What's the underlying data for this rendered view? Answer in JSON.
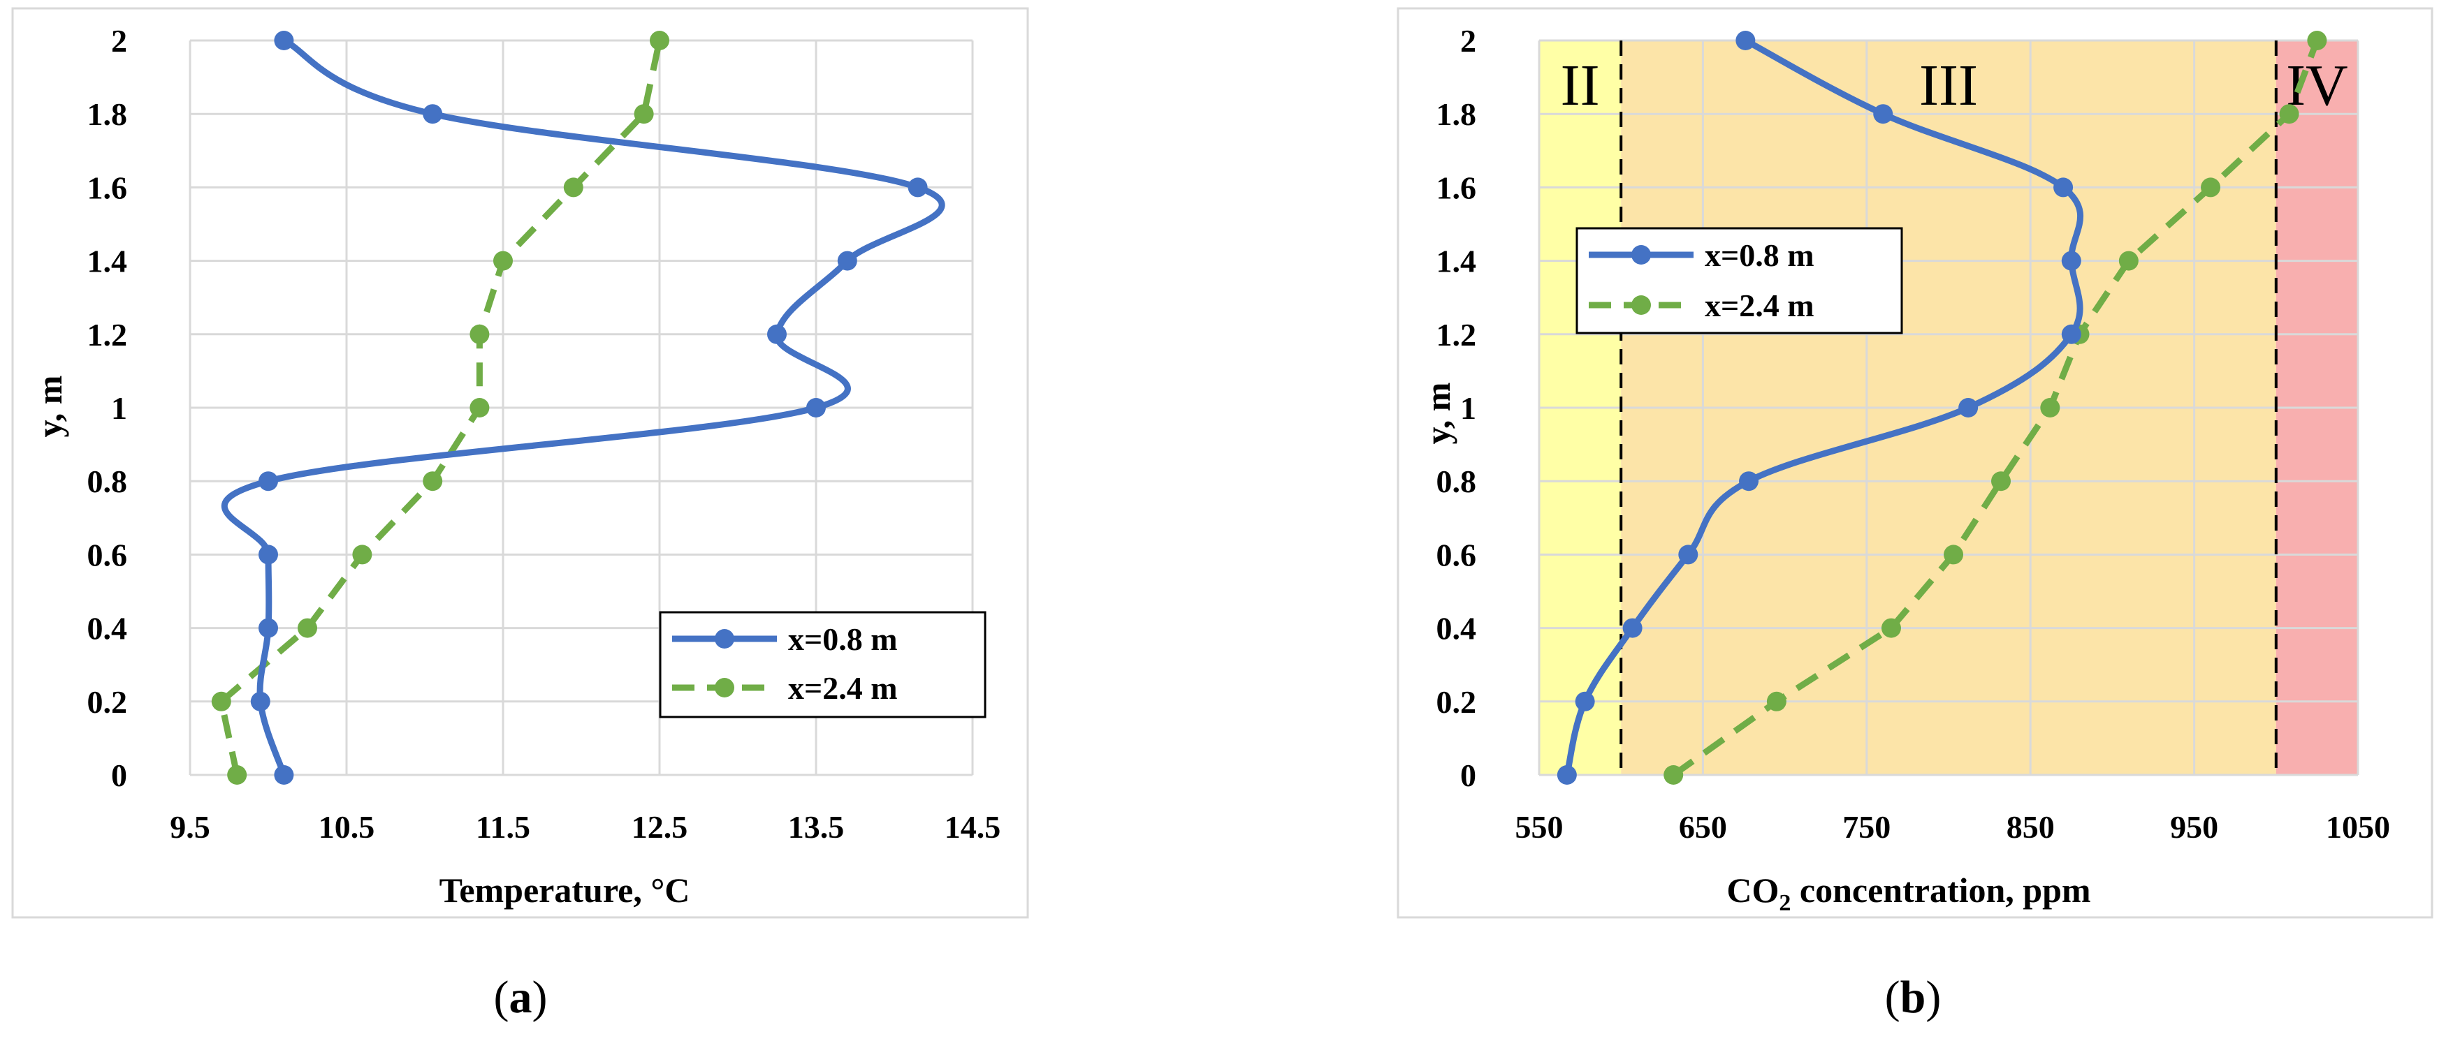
{
  "colors": {
    "series_a": "#4472C4",
    "series_b": "#70AD47",
    "grid": "#D9D9D9",
    "frame": "#D9D9D9",
    "zone_II": "#FFFFA6",
    "zone_III": "#FCE4A8",
    "zone_IV": "#F8AFAF",
    "zone_boundary": "#000000"
  },
  "panels": [
    {
      "label_before": "(",
      "label_letter": "a",
      "label_after": ")"
    },
    {
      "label_before": "(",
      "label_letter": "b",
      "label_after": ")"
    }
  ],
  "chart_data": [
    {
      "type": "line",
      "title": "",
      "xlabel": "Temperature, °C",
      "ylabel": "y, m",
      "xlim": [
        9.5,
        14.5
      ],
      "ylim": [
        0,
        2
      ],
      "xticks": [
        "9.5",
        "10.5",
        "11.5",
        "12.5",
        "13.5",
        "14.5"
      ],
      "yticks": [
        "0",
        "0.2",
        "0.4",
        "0.6",
        "0.8",
        "1",
        "1.2",
        "1.4",
        "1.6",
        "1.8",
        "2"
      ],
      "grid": true,
      "legend_position": "bottom-right",
      "series": [
        {
          "name": "x=0.8 m",
          "style": "solid, smoothed, circle markers",
          "points": [
            [
              10.1,
              0
            ],
            [
              9.95,
              0.2
            ],
            [
              10.0,
              0.4
            ],
            [
              10.0,
              0.6
            ],
            [
              10.0,
              0.8
            ],
            [
              13.5,
              1.0
            ],
            [
              13.25,
              1.2
            ],
            [
              13.7,
              1.4
            ],
            [
              14.15,
              1.6
            ],
            [
              11.05,
              1.8
            ],
            [
              10.1,
              2.0
            ]
          ]
        },
        {
          "name": "x=2.4 m",
          "style": "dashed, circle markers",
          "points": [
            [
              9.8,
              0
            ],
            [
              9.7,
              0.2
            ],
            [
              10.25,
              0.4
            ],
            [
              10.6,
              0.6
            ],
            [
              11.05,
              0.8
            ],
            [
              11.35,
              1.0
            ],
            [
              11.35,
              1.2
            ],
            [
              11.5,
              1.4
            ],
            [
              11.95,
              1.6
            ],
            [
              12.4,
              1.8
            ],
            [
              12.5,
              2.0
            ]
          ]
        }
      ]
    },
    {
      "type": "line",
      "title": "",
      "xlabel_main": "CO",
      "xlabel_sub": "2",
      "xlabel_rest": " concentration, ppm",
      "ylabel": "y, m",
      "xlim": [
        550,
        1050
      ],
      "ylim": [
        0,
        2
      ],
      "xticks": [
        "550",
        "650",
        "750",
        "850",
        "950",
        "1050"
      ],
      "yticks": [
        "0",
        "0.2",
        "0.4",
        "0.6",
        "0.8",
        "1",
        "1.2",
        "1.4",
        "1.6",
        "1.8",
        "2"
      ],
      "grid": true,
      "legend_position": "upper-left",
      "zones": [
        {
          "label": "II",
          "from": 550,
          "to": 600
        },
        {
          "label": "III",
          "from": 600,
          "to": 1000
        },
        {
          "label": "IV",
          "from": 1000,
          "to": 1050
        }
      ],
      "boundaries": [
        600,
        1000
      ],
      "series": [
        {
          "name": "x=0.8 m",
          "style": "solid, smoothed, circle markers",
          "points": [
            [
              567,
              0
            ],
            [
              578,
              0.2
            ],
            [
              607,
              0.4
            ],
            [
              641,
              0.6
            ],
            [
              678,
              0.8
            ],
            [
              812,
              1.0
            ],
            [
              875,
              1.2
            ],
            [
              875,
              1.4
            ],
            [
              870,
              1.6
            ],
            [
              760,
              1.8
            ],
            [
              676,
              2.0
            ]
          ]
        },
        {
          "name": "x=2.4 m",
          "style": "dashed, circle markers",
          "points": [
            [
              632,
              0
            ],
            [
              695,
              0.2
            ],
            [
              765,
              0.4
            ],
            [
              803,
              0.6
            ],
            [
              832,
              0.8
            ],
            [
              862,
              1.0
            ],
            [
              880,
              1.2
            ],
            [
              910,
              1.4
            ],
            [
              960,
              1.6
            ],
            [
              1008,
              1.8
            ],
            [
              1025,
              2.0
            ]
          ]
        }
      ]
    }
  ]
}
